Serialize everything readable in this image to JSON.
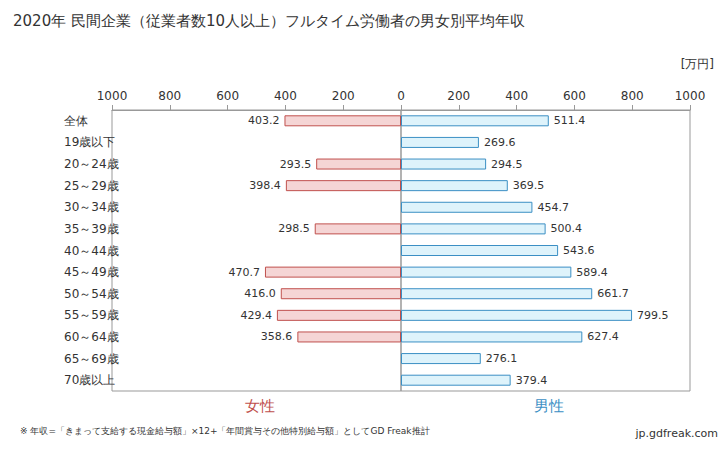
{
  "chart_data": [
    {
      "type": "bar",
      "orientation": "horizontal",
      "title": "2020年 民間企業（従業者数10人以上）フルタイム労働者の男女別平均年収",
      "categories": [
        "全体",
        "19歳以下",
        "20～24歳",
        "25～29歳",
        "30～34歳",
        "35～39歳",
        "40～44歳",
        "45～49歳",
        "50～54歳",
        "55～59歳",
        "60～64歳",
        "65～69歳",
        "70歳以上"
      ],
      "series": [
        {
          "name": "女性",
          "color": "#f5d5d5",
          "values": [
            403.2,
            null,
            293.5,
            398.4,
            null,
            298.5,
            null,
            470.7,
            416.0,
            429.4,
            358.6,
            null,
            null
          ],
          "value_labels": [
            "403.2",
            null,
            "293.5",
            "398.4",
            null,
            "298.5",
            null,
            "470.7",
            "416.0",
            "429.4",
            "358.6",
            null,
            null
          ]
        }
      ],
      "xlim": [
        0,
        1000
      ],
      "xticks": [
        200,
        400,
        600,
        800,
        1000
      ],
      "data_labels": true,
      "grid": false,
      "tick_labels": true,
      "annotations": [
        "※ 年収=「きまって支給する現金給与額」×12+「年間賞与その他特別給与額」としてGD Freak推計",
        "jp.gdfreak.com"
      ]
    },
    {
      "type": "bar",
      "orientation": "horizontal",
      "xlabel": "[万円]",
      "categories": [
        "全体",
        "19歳以下",
        "20～24歳",
        "25～29歳",
        "30～34歳",
        "35～39歳",
        "40～44歳",
        "45～49歳",
        "50～54歳",
        "55～59歳",
        "60～64歳",
        "65～69歳",
        "70歳以上"
      ],
      "series": [
        {
          "name": "男性",
          "color": "#def3fb",
          "values": [
            511.4,
            269.6,
            294.5,
            369.5,
            454.7,
            500.4,
            543.6,
            589.4,
            661.7,
            799.5,
            627.4,
            276.1,
            379.4
          ]
        }
      ],
      "xlim": [
        0,
        1000
      ],
      "xticks": [
        0,
        200,
        400,
        600,
        800,
        1000
      ],
      "data_labels": true,
      "grid": false,
      "tick_labels": "x"
    }
  ]
}
